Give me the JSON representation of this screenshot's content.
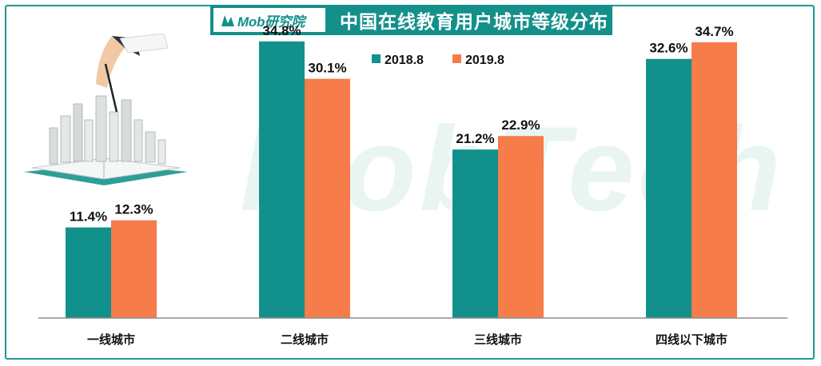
{
  "header": {
    "logo_text": "Mob研究院",
    "title": "中国在线教育用户城市等级分布"
  },
  "watermark": "MobTech",
  "colors": {
    "series1": "#12908c",
    "series2": "#f67c4a",
    "accent": "#14908b"
  },
  "chart_data": {
    "type": "bar",
    "title": "中国在线教育用户城市等级分布",
    "categories": [
      "一线城市",
      "二线城市",
      "三线城市",
      "四线以下城市"
    ],
    "series": [
      {
        "name": "2018.8",
        "values": [
          11.4,
          34.8,
          21.2,
          32.6
        ],
        "labels": [
          "11.4%",
          "34.8%",
          "21.2%",
          "32.6%"
        ]
      },
      {
        "name": "2019.8",
        "values": [
          12.3,
          30.1,
          22.9,
          34.7
        ],
        "labels": [
          "12.3%",
          "30.1%",
          "22.9%",
          "34.7%"
        ]
      }
    ],
    "unit": "%",
    "ylim": [
      0,
      38
    ],
    "grid": false,
    "legend_position": "top-center"
  }
}
